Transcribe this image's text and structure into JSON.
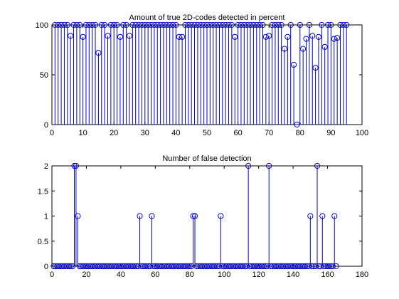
{
  "chart_data": [
    {
      "type": "stem",
      "title": "Amount of true 2D-codes detected in percent",
      "xlabel": "",
      "ylabel": "",
      "xlim": [
        0,
        100
      ],
      "ylim": [
        0,
        100
      ],
      "xticks": [
        0,
        10,
        20,
        30,
        40,
        50,
        60,
        70,
        80,
        90,
        100
      ],
      "yticks": [
        0,
        50,
        100
      ],
      "grid": false,
      "x": [
        1,
        2,
        3,
        4,
        5,
        6,
        7,
        8,
        9,
        10,
        11,
        12,
        13,
        14,
        15,
        16,
        17,
        18,
        19,
        20,
        21,
        22,
        23,
        24,
        25,
        26,
        27,
        28,
        29,
        30,
        31,
        32,
        33,
        34,
        35,
        36,
        37,
        38,
        39,
        40,
        41,
        42,
        43,
        44,
        45,
        46,
        47,
        48,
        49,
        50,
        51,
        52,
        53,
        54,
        55,
        56,
        57,
        58,
        59,
        60,
        61,
        62,
        63,
        64,
        65,
        66,
        67,
        68,
        69,
        70,
        71,
        72,
        73,
        74,
        75,
        76,
        77,
        78,
        79,
        80,
        81,
        82,
        83,
        84,
        85,
        86,
        87,
        88,
        89,
        90,
        91,
        92,
        93,
        94,
        95
      ],
      "values": [
        100,
        100,
        100,
        100,
        100,
        89,
        100,
        100,
        100,
        88,
        100,
        100,
        100,
        100,
        72,
        100,
        100,
        89,
        100,
        100,
        100,
        88,
        100,
        100,
        89,
        100,
        100,
        100,
        100,
        100,
        100,
        100,
        100,
        100,
        100,
        100,
        100,
        100,
        100,
        100,
        88,
        88,
        100,
        100,
        100,
        100,
        100,
        100,
        100,
        100,
        100,
        100,
        100,
        100,
        100,
        100,
        100,
        100,
        88,
        100,
        100,
        100,
        100,
        100,
        100,
        100,
        100,
        100,
        88,
        89,
        100,
        100,
        100,
        100,
        76,
        88,
        100,
        60,
        0,
        100,
        76,
        86,
        100,
        89,
        57,
        88,
        100,
        78,
        100,
        100,
        86,
        87,
        100,
        100,
        100
      ]
    },
    {
      "type": "stem",
      "title": "Number of false detection",
      "xlabel": "",
      "ylabel": "",
      "xlim": [
        0,
        180
      ],
      "ylim": [
        0,
        2
      ],
      "xticks": [
        0,
        20,
        40,
        60,
        80,
        100,
        120,
        140,
        160,
        180
      ],
      "yticks": [
        0,
        0.5,
        1,
        1.5,
        2
      ],
      "grid": false,
      "x": [
        1,
        2,
        3,
        4,
        5,
        6,
        7,
        8,
        9,
        10,
        11,
        12,
        13,
        14,
        15,
        16,
        17,
        18,
        19,
        20,
        21,
        22,
        23,
        24,
        25,
        26,
        27,
        28,
        29,
        30,
        31,
        32,
        33,
        34,
        35,
        36,
        37,
        38,
        39,
        40,
        41,
        42,
        43,
        44,
        45,
        46,
        47,
        48,
        49,
        50,
        51,
        52,
        53,
        54,
        55,
        56,
        57,
        58,
        59,
        60,
        61,
        62,
        63,
        64,
        65,
        66,
        67,
        68,
        69,
        70,
        71,
        72,
        73,
        74,
        75,
        76,
        77,
        78,
        79,
        80,
        81,
        82,
        83,
        84,
        85,
        86,
        87,
        88,
        89,
        90,
        91,
        92,
        93,
        94,
        95,
        96,
        97,
        98,
        99,
        100,
        101,
        102,
        103,
        104,
        105,
        106,
        107,
        108,
        109,
        110,
        111,
        112,
        113,
        114,
        115,
        116,
        117,
        118,
        119,
        120,
        121,
        122,
        123,
        124,
        125,
        126,
        127,
        128,
        129,
        130,
        131,
        132,
        133,
        134,
        135,
        136,
        137,
        138,
        139,
        140,
        141,
        142,
        143,
        144,
        145,
        146,
        147,
        148,
        149,
        150,
        151,
        152,
        153,
        154,
        155,
        156,
        157,
        158,
        159,
        160,
        161,
        162,
        163,
        164,
        165
      ],
      "values": [
        0,
        0,
        0,
        0,
        0,
        0,
        0,
        0,
        0,
        0,
        0,
        0,
        2,
        2,
        1,
        0,
        0,
        0,
        0,
        0,
        0,
        0,
        0,
        0,
        0,
        0,
        0,
        0,
        0,
        0,
        0,
        0,
        0,
        0,
        0,
        0,
        0,
        0,
        0,
        0,
        0,
        0,
        0,
        0,
        0,
        0,
        0,
        0,
        0,
        0,
        1,
        0,
        0,
        0,
        0,
        0,
        0,
        1,
        0,
        0,
        0,
        0,
        0,
        0,
        0,
        0,
        0,
        0,
        0,
        0,
        0,
        0,
        0,
        0,
        0,
        0,
        0,
        0,
        0,
        0,
        0,
        1,
        1,
        0,
        0,
        0,
        0,
        0,
        0,
        0,
        0,
        0,
        0,
        0,
        0,
        0,
        0,
        1,
        0,
        0,
        0,
        0,
        0,
        0,
        0,
        0,
        0,
        0,
        0,
        0,
        0,
        0,
        0,
        2,
        0,
        0,
        0,
        0,
        0,
        0,
        0,
        0,
        0,
        0,
        0,
        2,
        0,
        0,
        0,
        0,
        0,
        0,
        0,
        0,
        0,
        0,
        0,
        0,
        0,
        0,
        0,
        0,
        0,
        0,
        0,
        0,
        0,
        0,
        0,
        1,
        0,
        0,
        0,
        2,
        0,
        0,
        1,
        0,
        0,
        0,
        0,
        0,
        0,
        1,
        0
      ]
    }
  ]
}
